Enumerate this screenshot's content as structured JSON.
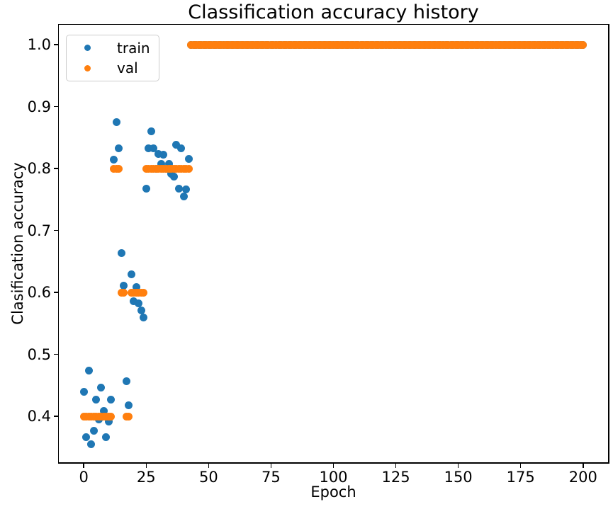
{
  "chart_data": {
    "type": "scatter",
    "title": "Classification accuracy history",
    "xlabel": "Epoch",
    "ylabel": "Clasification accuracy",
    "xlim": [
      -10,
      210
    ],
    "ylim": [
      0.326,
      1.032
    ],
    "xticks": [
      0,
      25,
      50,
      75,
      100,
      125,
      150,
      175,
      200
    ],
    "yticks": [
      0.4,
      0.5,
      0.6,
      0.7,
      0.8,
      0.9,
      1.0
    ],
    "grid": false,
    "marker_diameter_px": 11,
    "legend": {
      "position": "upper left",
      "entries": [
        {
          "label": "train",
          "color": "#1f77b4"
        },
        {
          "label": "val",
          "color": "#ff7f0e"
        }
      ]
    },
    "series": [
      {
        "name": "train",
        "color": "#1f77b4",
        "points": [
          [
            0,
            0.44
          ],
          [
            1,
            0.367
          ],
          [
            2,
            0.474
          ],
          [
            3,
            0.355
          ],
          [
            4,
            0.377
          ],
          [
            5,
            0.427
          ],
          [
            6,
            0.395
          ],
          [
            7,
            0.447
          ],
          [
            8,
            0.409
          ],
          [
            9,
            0.367
          ],
          [
            10,
            0.392
          ],
          [
            11,
            0.427
          ],
          [
            12,
            0.814
          ],
          [
            13,
            0.875
          ],
          [
            14,
            0.833
          ],
          [
            15,
            0.664
          ],
          [
            16,
            0.611
          ],
          [
            17,
            0.457
          ],
          [
            18,
            0.418
          ],
          [
            19,
            0.629
          ],
          [
            20,
            0.586
          ],
          [
            21,
            0.609
          ],
          [
            22,
            0.582
          ],
          [
            23,
            0.571
          ],
          [
            24,
            0.56
          ],
          [
            25,
            0.768
          ],
          [
            26,
            0.833
          ],
          [
            27,
            0.86
          ],
          [
            28,
            0.833
          ],
          [
            29,
            0.8
          ],
          [
            30,
            0.823
          ],
          [
            31,
            0.808
          ],
          [
            32,
            0.822
          ],
          [
            33,
            0.8
          ],
          [
            34,
            0.808
          ],
          [
            35,
            0.791
          ],
          [
            36,
            0.787
          ],
          [
            37,
            0.838
          ],
          [
            38,
            0.768
          ],
          [
            39,
            0.833
          ],
          [
            40,
            0.755
          ],
          [
            41,
            0.766
          ],
          [
            42,
            0.816
          ]
        ],
        "runs": [
          {
            "from": 43,
            "to": 200,
            "value": 1.0
          }
        ]
      },
      {
        "name": "val",
        "color": "#ff7f0e",
        "points": [],
        "runs": [
          {
            "from": 0,
            "to": 11,
            "value": 0.4
          },
          {
            "from": 12,
            "to": 14,
            "value": 0.8
          },
          {
            "from": 15,
            "to": 16,
            "value": 0.6
          },
          {
            "from": 17,
            "to": 18,
            "value": 0.4
          },
          {
            "from": 19,
            "to": 24,
            "value": 0.6
          },
          {
            "from": 25,
            "to": 42,
            "value": 0.8
          },
          {
            "from": 43,
            "to": 200,
            "value": 1.0
          }
        ]
      }
    ]
  }
}
